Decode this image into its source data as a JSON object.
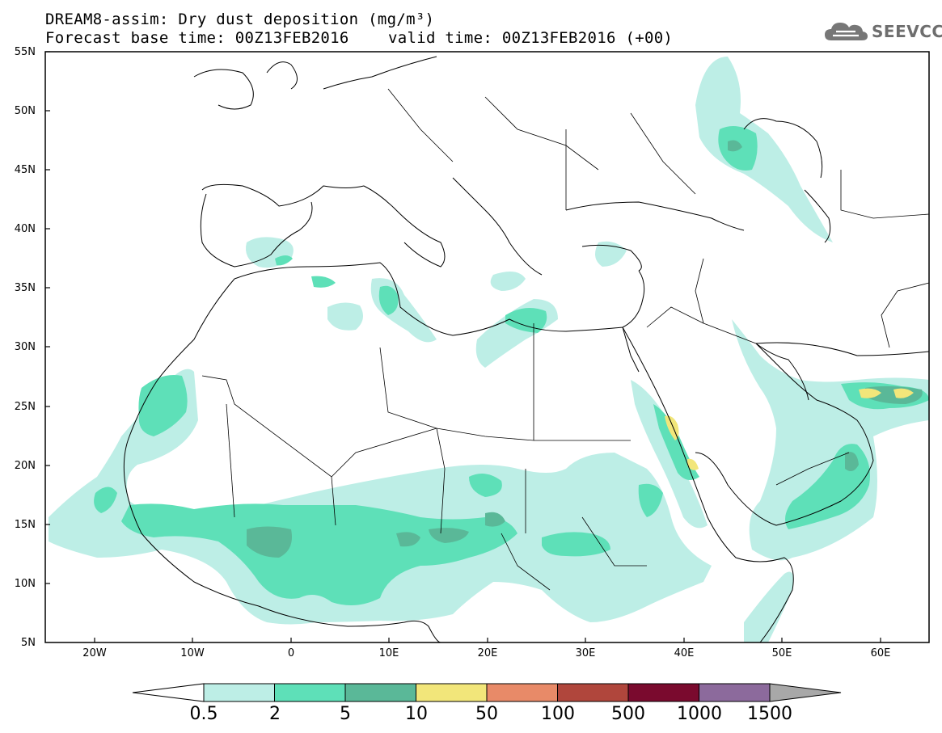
{
  "title": {
    "line1": "DREAM8-assim: Dry dust deposition (mg/m³)",
    "line2": "Forecast base time: 00Z13FEB2016",
    "valid": "valid time: 00Z13FEB2016 (+00)"
  },
  "logo": {
    "text": "SEEVCCC",
    "icon": "cloud-icon"
  },
  "map": {
    "lat_labels": [
      "55N",
      "50N",
      "45N",
      "40N",
      "35N",
      "30N",
      "25N",
      "20N",
      "15N",
      "10N",
      "5N"
    ],
    "lon_labels": [
      "20W",
      "10W",
      "0",
      "10E",
      "20E",
      "30E",
      "40E",
      "50E",
      "60E"
    ],
    "lat_range": [
      5,
      55
    ],
    "lon_range": [
      -25,
      65
    ],
    "region": "North Africa, Europe and Middle East"
  },
  "colorbar": {
    "labels": [
      "0.5",
      "2",
      "5",
      "10",
      "50",
      "100",
      "500",
      "1000",
      "1500"
    ],
    "colors": [
      "#bdeee6",
      "#5ee0b8",
      "#5ab898",
      "#f2e67a",
      "#e88a68",
      "#b0463c",
      "#7a0a2e",
      "#8c6a9c",
      "#a8a8a8"
    ]
  }
}
